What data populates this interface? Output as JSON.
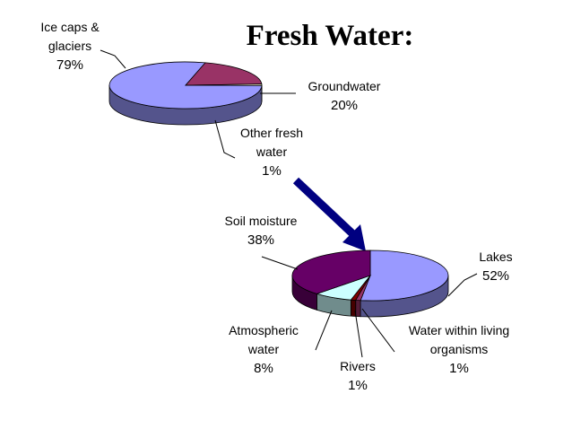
{
  "title": "Fresh Water:",
  "chart_data": [
    {
      "type": "pie",
      "categories": [
        "Ice caps & glaciers",
        "Groundwater",
        "Other fresh water"
      ],
      "values": [
        79,
        20,
        1
      ],
      "value_labels": [
        "79%",
        "20%",
        "1%"
      ],
      "colors": [
        "#9999ff",
        "#993366",
        "#ffffcc"
      ]
    },
    {
      "type": "pie",
      "categories": [
        "Lakes",
        "Water within living organisms",
        "Rivers",
        "Atmospheric water",
        "Soil moisture"
      ],
      "values": [
        52,
        1,
        1,
        8,
        38
      ],
      "value_labels": [
        "52%",
        "1%",
        "1%",
        "8%",
        "38%"
      ],
      "colors": [
        "#9999ff",
        "#993366",
        "#800000",
        "#ccffff",
        "#660066"
      ]
    }
  ]
}
